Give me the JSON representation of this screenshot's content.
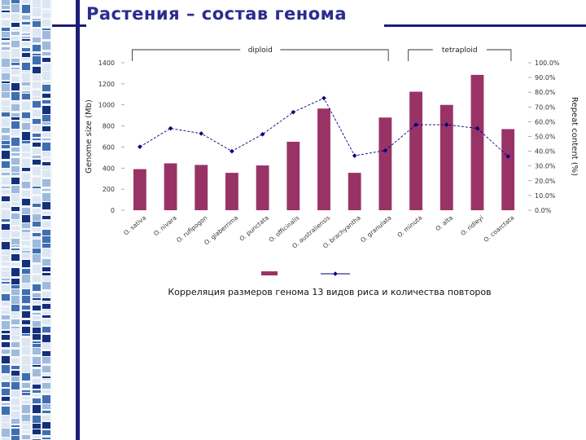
{
  "slide": {
    "title": "Растения – состав генома",
    "caption": "Корреляция размеров генома 13 видов риса и количества повторов"
  },
  "colors": {
    "bar": "#993366",
    "line": "#000080",
    "title": "#2c2c8e",
    "frame": "#1c1c7a"
  },
  "chart_data": {
    "type": "bar",
    "categories": [
      "O. sativa",
      "O. nivara",
      "O. rufipogon",
      "O. glaberrima",
      "O. punctata",
      "O. officinalis",
      "O. australiensis",
      "O. brachyantha",
      "O. granulata",
      "O. minuta",
      "O. alta",
      "O. ridleyi",
      "O. coarctata"
    ],
    "series": [
      {
        "type": "bar",
        "axis": "left",
        "values": [
          390,
          445,
          430,
          355,
          425,
          650,
          965,
          355,
          880,
          1125,
          1000,
          1285,
          770
        ]
      },
      {
        "type": "line",
        "axis": "right",
        "values": [
          43.0,
          55.5,
          52.0,
          40.0,
          51.5,
          66.5,
          76.0,
          37.0,
          40.5,
          58.0,
          58.0,
          55.5,
          36.5
        ]
      }
    ],
    "ylabel": "Genome size (Mb)",
    "y2label": "Repeat content (%)",
    "ylim": [
      0,
      1400
    ],
    "yticks": [
      "0",
      "200",
      "400",
      "600",
      "800",
      "1000",
      "1200",
      "1400"
    ],
    "y2lim": [
      0,
      100
    ],
    "y2ticks": [
      "0.0%",
      "10.0%",
      "20.0%",
      "30.0%",
      "40.0%",
      "50.0%",
      "60.0%",
      "70.0%",
      "80.0%",
      "90.0%",
      "100.0%"
    ],
    "groups": [
      {
        "label": "diploid",
        "from": 0,
        "to": 8
      },
      {
        "label": "tetraploid",
        "from": 9,
        "to": 12
      }
    ],
    "grid": false,
    "legend": "bottom"
  }
}
